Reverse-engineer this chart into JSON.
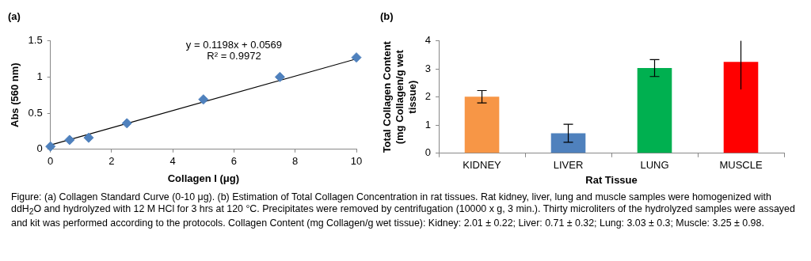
{
  "chart_data": [
    {
      "type": "scatter",
      "title": "(a)",
      "xlabel": "Collagen I (μg)",
      "ylabel": "Abs (560 nm)",
      "xlim": [
        0,
        10
      ],
      "xticks": [
        0,
        2,
        4,
        6,
        8,
        10
      ],
      "ylim": [
        0,
        1.5
      ],
      "yticks": [
        0,
        0.5,
        1,
        1.5
      ],
      "series": [
        {
          "type": "scatter",
          "marker": "diamond",
          "color": "#4f81bd",
          "x": [
            0,
            0.625,
            1.25,
            2.5,
            5,
            7.5,
            10
          ],
          "values": [
            0.04,
            0.13,
            0.16,
            0.36,
            0.69,
            1.0,
            1.27
          ]
        },
        {
          "type": "line",
          "marker": "none",
          "color": "#000000",
          "x": [
            0,
            10
          ],
          "values": [
            0.06,
            1.25
          ]
        }
      ],
      "annotations": [
        "y = 0.1198x + 0.0569",
        "R² = 0.9972"
      ]
    },
    {
      "type": "bar",
      "title": "(b)",
      "xlabel": "Rat Tissue",
      "ylabel": "Total Collagen Content (mg Collagen/g wet tissue)",
      "categories": [
        "KIDNEY",
        "LIVER",
        "LUNG",
        "MUSCLE"
      ],
      "values": [
        2.01,
        0.71,
        3.03,
        3.25
      ],
      "colors": [
        "#f79646",
        "#4f81bd",
        "#00b050",
        "#ff0000"
      ],
      "errors": [
        0.22,
        0.32,
        0.3,
        [
          2.27,
          4
        ]
      ],
      "ylim": [
        0,
        4
      ],
      "yticks": [
        0,
        1,
        2,
        3,
        4
      ],
      "annotations": [
        "Figure: (a) Collagen Standard Curve (0-10 μg). (b)  Estimation of Total Collagen Concentration in rat tissues.  Rat kidney, liver, lung and muscle samples were homogenized with ddH$_{2}$O and hydrolyzed with 12 M HCl for 3 hrs at 120 °C.  Precipitates were removed by centrifugation (10000 x g, 3 min.). Thirty microliters of the hydrolyzed samples were assayed and kit was performed according to the protocols. Collagen Content (mg Collagen/g wet tissue): Kidney: 2.01 ± 0.22; Liver: 0.71 ± 0.32; Lung: 3.03 ± 0.3; Muscle: 3.25 ± 0.98."
      ]
    }
  ]
}
